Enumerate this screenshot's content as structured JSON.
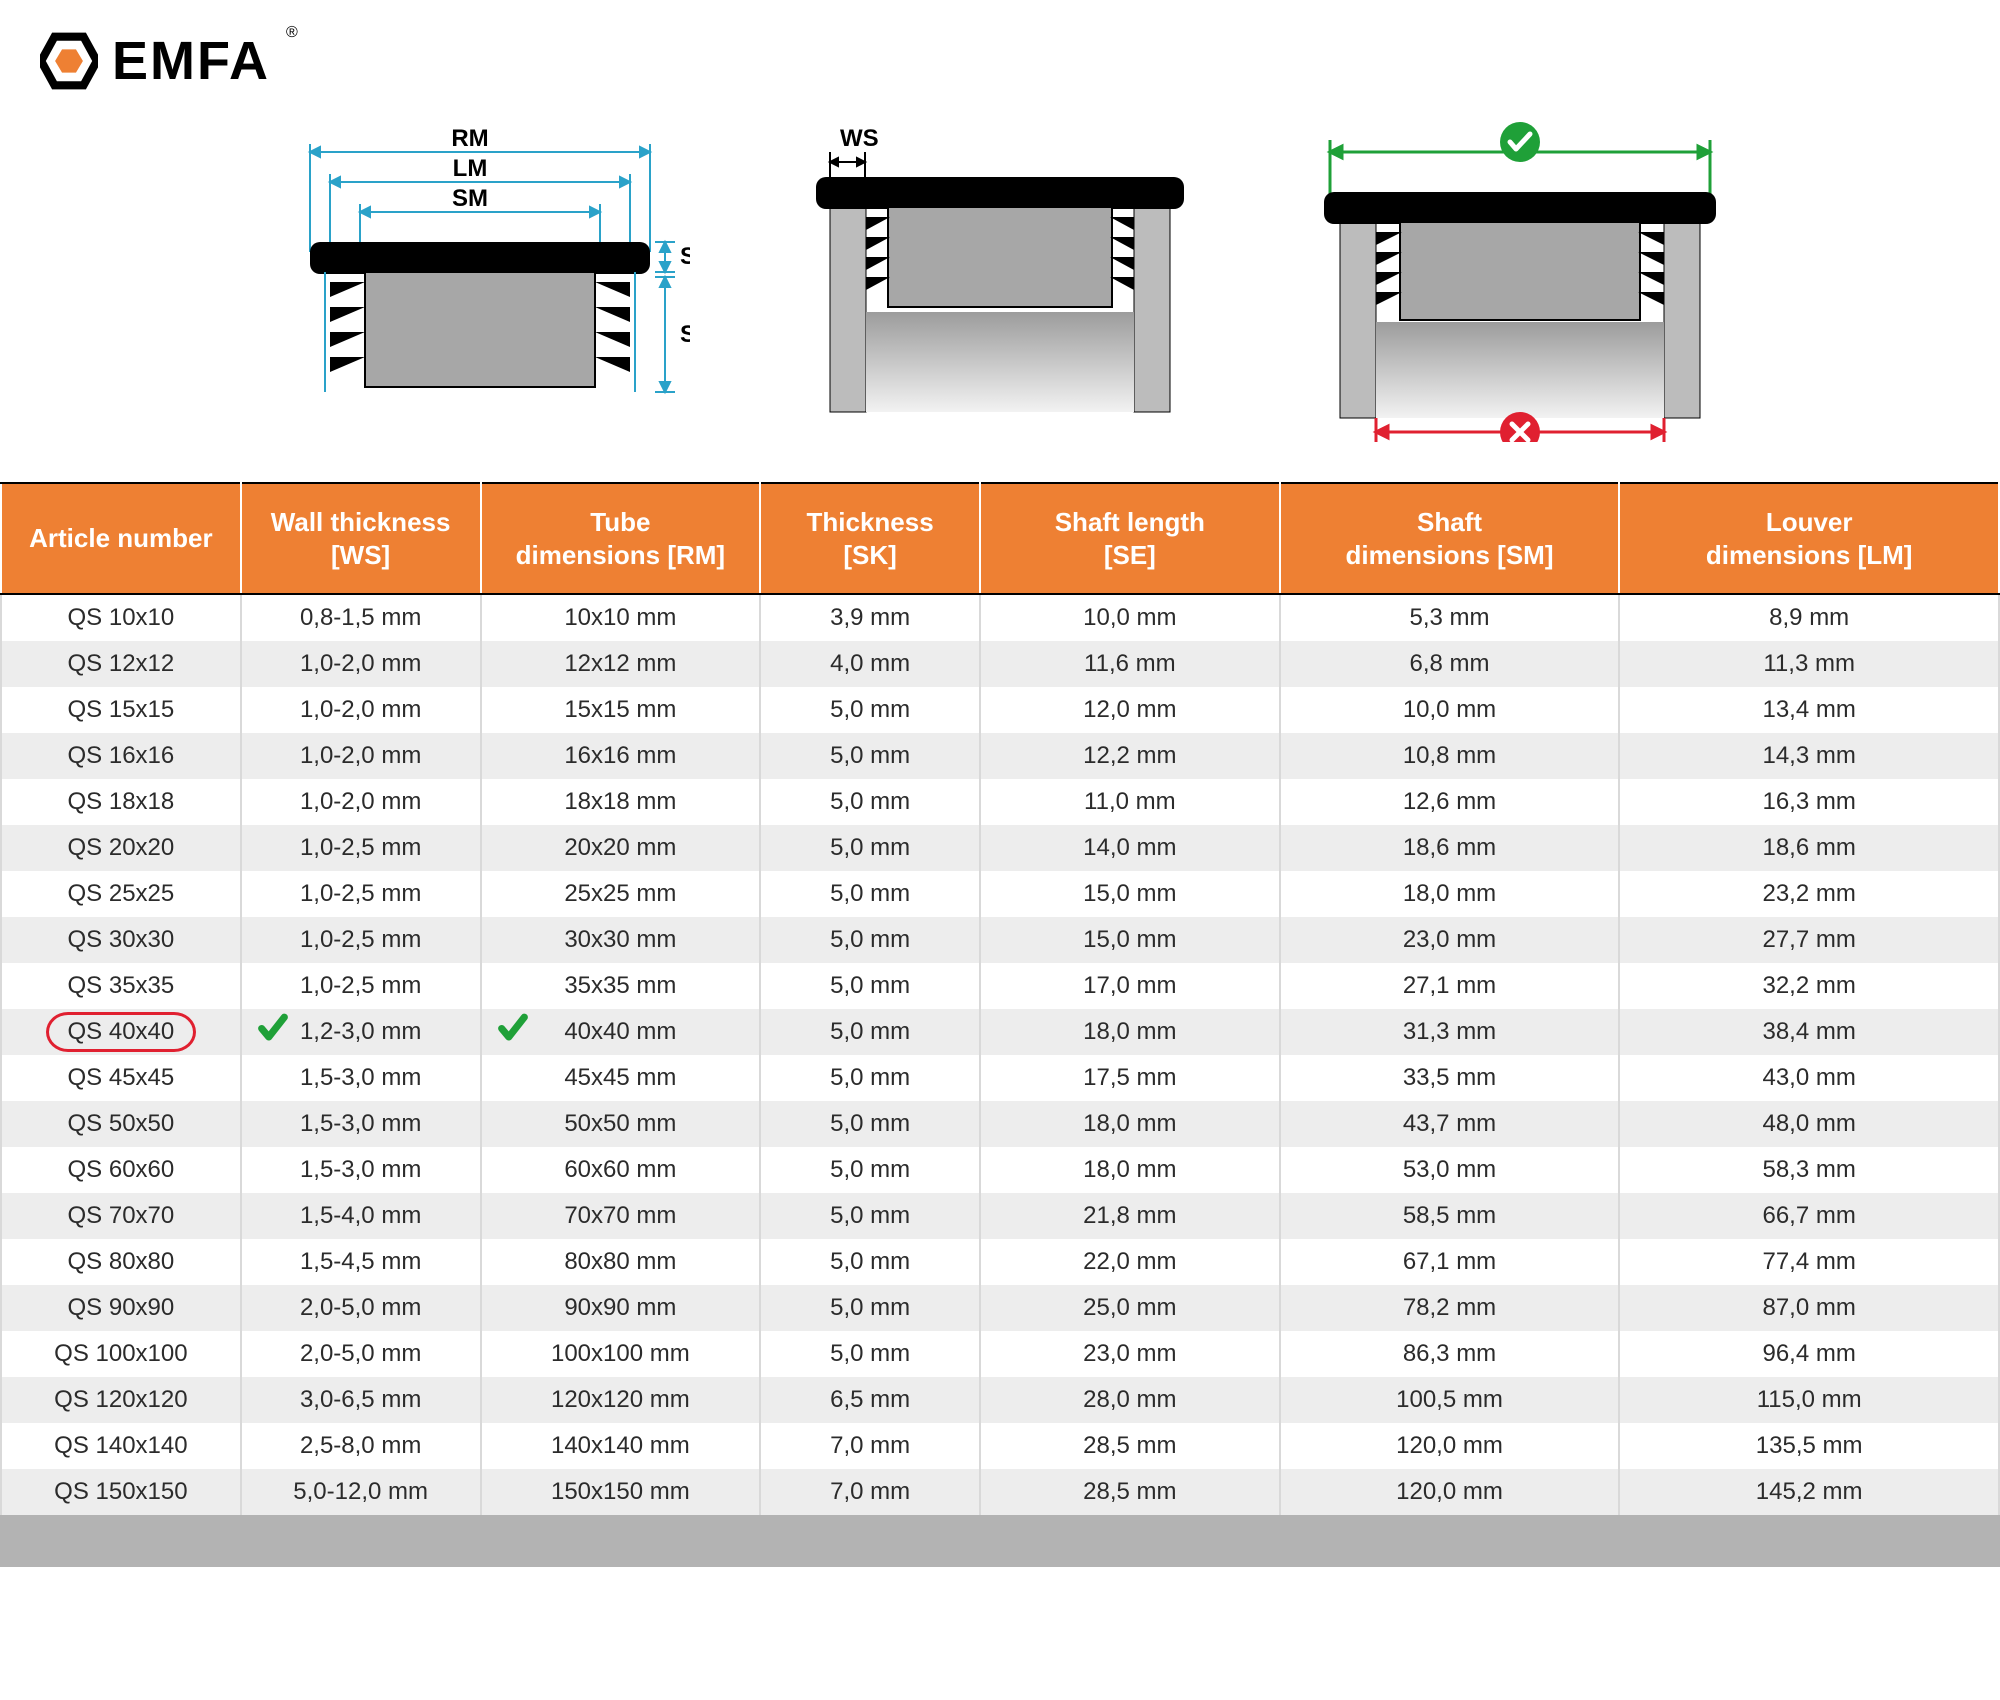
{
  "brand": {
    "name": "EMFA",
    "reg": "®",
    "hex_color": "#ee8033"
  },
  "diagram_labels": {
    "RM": "RM",
    "LM": "LM",
    "SM": "SM",
    "SK": "SK",
    "SE": "SE",
    "WS": "WS"
  },
  "colors": {
    "header_bg": "#ee8033",
    "header_text": "#ffffff",
    "row_even": "#ededed",
    "row_odd": "#ffffff",
    "border": "#d9d9d9",
    "green": "#1fa038",
    "red": "#e02030",
    "dim_line": "#2aa2c9",
    "check_circle": "#1fa038",
    "cross_circle": "#e02030"
  },
  "table": {
    "headers": [
      "Article number",
      "Wall thickness [WS]",
      "Tube dimensions [RM]",
      "Thickness [SK]",
      "Shaft length [SE]",
      "Shaft dimensions [SM]",
      "Louver dimensions [LM]"
    ],
    "highlight_row_index": 9,
    "rows": [
      [
        "QS 10x10",
        "0,8-1,5 mm",
        "10x10 mm",
        "3,9 mm",
        "10,0 mm",
        "5,3 mm",
        "8,9 mm"
      ],
      [
        "QS 12x12",
        "1,0-2,0 mm",
        "12x12 mm",
        "4,0 mm",
        "11,6 mm",
        "6,8 mm",
        "11,3 mm"
      ],
      [
        "QS 15x15",
        "1,0-2,0 mm",
        "15x15 mm",
        "5,0 mm",
        "12,0 mm",
        "10,0 mm",
        "13,4 mm"
      ],
      [
        "QS 16x16",
        "1,0-2,0 mm",
        "16x16 mm",
        "5,0 mm",
        "12,2 mm",
        "10,8 mm",
        "14,3 mm"
      ],
      [
        "QS 18x18",
        "1,0-2,0 mm",
        "18x18 mm",
        "5,0 mm",
        "11,0 mm",
        "12,6 mm",
        "16,3 mm"
      ],
      [
        "QS 20x20",
        "1,0-2,5 mm",
        "20x20 mm",
        "5,0 mm",
        "14,0 mm",
        "18,6 mm",
        "18,6 mm"
      ],
      [
        "QS 25x25",
        "1,0-2,5 mm",
        "25x25 mm",
        "5,0 mm",
        "15,0 mm",
        "18,0 mm",
        "23,2 mm"
      ],
      [
        "QS 30x30",
        "1,0-2,5 mm",
        "30x30 mm",
        "5,0 mm",
        "15,0 mm",
        "23,0 mm",
        "27,7 mm"
      ],
      [
        "QS 35x35",
        "1,0-2,5 mm",
        "35x35 mm",
        "5,0 mm",
        "17,0 mm",
        "27,1 mm",
        "32,2 mm"
      ],
      [
        "QS 40x40",
        "1,2-3,0 mm",
        "40x40 mm",
        "5,0 mm",
        "18,0 mm",
        "31,3 mm",
        "38,4 mm"
      ],
      [
        "QS 45x45",
        "1,5-3,0 mm",
        "45x45 mm",
        "5,0 mm",
        "17,5 mm",
        "33,5 mm",
        "43,0 mm"
      ],
      [
        "QS 50x50",
        "1,5-3,0 mm",
        "50x50 mm",
        "5,0 mm",
        "18,0 mm",
        "43,7 mm",
        "48,0 mm"
      ],
      [
        "QS 60x60",
        "1,5-3,0 mm",
        "60x60 mm",
        "5,0 mm",
        "18,0 mm",
        "53,0 mm",
        "58,3 mm"
      ],
      [
        "QS 70x70",
        "1,5-4,0 mm",
        "70x70 mm",
        "5,0 mm",
        "21,8 mm",
        "58,5 mm",
        "66,7 mm"
      ],
      [
        "QS 80x80",
        "1,5-4,5 mm",
        "80x80 mm",
        "5,0 mm",
        "22,0 mm",
        "67,1 mm",
        "77,4 mm"
      ],
      [
        "QS 90x90",
        "2,0-5,0 mm",
        "90x90 mm",
        "5,0 mm",
        "25,0 mm",
        "78,2 mm",
        "87,0 mm"
      ],
      [
        "QS 100x100",
        "2,0-5,0 mm",
        "100x100 mm",
        "5,0 mm",
        "23,0 mm",
        "86,3 mm",
        "96,4 mm"
      ],
      [
        "QS 120x120",
        "3,0-6,5 mm",
        "120x120 mm",
        "6,5 mm",
        "28,0 mm",
        "100,5 mm",
        "115,0 mm"
      ],
      [
        "QS 140x140",
        "2,5-8,0 mm",
        "140x140 mm",
        "7,0 mm",
        "28,5 mm",
        "120,0 mm",
        "135,5 mm"
      ],
      [
        "QS 150x150",
        "5,0-12,0 mm",
        "150x150 mm",
        "7,0 mm",
        "28,5 mm",
        "120,0 mm",
        "145,2 mm"
      ]
    ]
  },
  "diagrams": {
    "cap_fill": "#a7a7a7",
    "cap_black": "#000000",
    "tube_fill_light": "#cfcfcf",
    "stroke_dim": "#2aa2c9",
    "ok_color": "#1fa038",
    "bad_color": "#e02030",
    "label_fontsize": 24
  }
}
